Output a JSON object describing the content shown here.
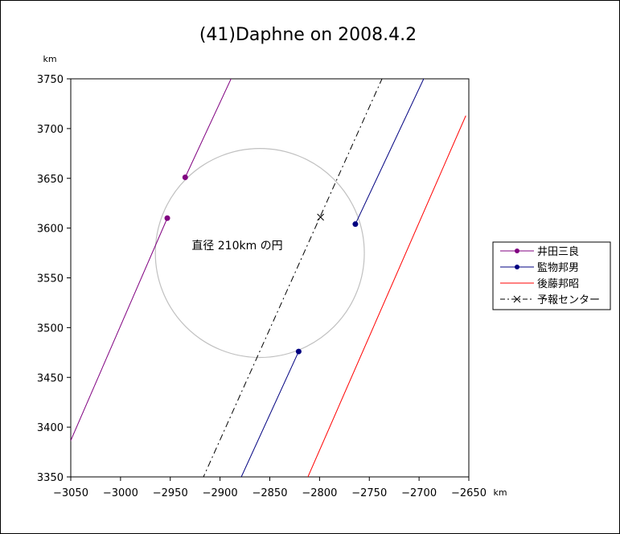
{
  "chart_data": {
    "type": "line",
    "title": "(41)Daphne on 2008.4.2",
    "xunit": "km",
    "yunit": "km",
    "xlim": [
      -3050,
      -2650
    ],
    "ylim": [
      3350,
      3750
    ],
    "xticks": [
      -3050,
      -3000,
      -2950,
      -2900,
      -2850,
      -2800,
      -2750,
      -2700,
      -2650
    ],
    "yticks": [
      3350,
      3400,
      3450,
      3500,
      3550,
      3600,
      3650,
      3700,
      3750
    ],
    "xtick_labels": [
      "−3050",
      "−3000",
      "−2950",
      "−2900",
      "−2850",
      "−2800",
      "−2750",
      "−2700",
      "−2650"
    ],
    "ytick_labels": [
      "3350",
      "3400",
      "3450",
      "3500",
      "3550",
      "3600",
      "3650",
      "3700",
      "3750"
    ],
    "grid": false,
    "legend_position": "right",
    "series": [
      {
        "name": "井田三良",
        "color": "#800080",
        "style": "solid",
        "marker": "dot",
        "segments": [
          {
            "x": [
              -2935,
              -2888
            ],
            "y": [
              3651,
              3752
            ]
          },
          {
            "x": [
              -2953,
              -3052
            ],
            "y": [
              3610,
              3382
            ]
          }
        ],
        "points": [
          {
            "x": -2935,
            "y": 3651
          },
          {
            "x": -2953,
            "y": 3610
          }
        ]
      },
      {
        "name": "監物邦男",
        "color": "#000080",
        "style": "solid",
        "marker": "dot",
        "segments": [
          {
            "x": [
              -2764,
              -2693
            ],
            "y": [
              3604,
              3755
            ]
          },
          {
            "x": [
              -2821,
              -2880
            ],
            "y": [
              3476,
              3347
            ]
          }
        ],
        "points": [
          {
            "x": -2764,
            "y": 3604
          },
          {
            "x": -2821,
            "y": 3476
          }
        ]
      },
      {
        "name": "後藤邦昭",
        "color": "#ff0000",
        "style": "solid",
        "marker": "none",
        "segments": [
          {
            "x": [
              -2813,
              -2653
            ],
            "y": [
              3347,
              3713
            ]
          }
        ],
        "points": []
      },
      {
        "name": "予報センター",
        "color": "#000000",
        "style": "dashdot",
        "marker": "x",
        "segments": [
          {
            "x": [
              -2918,
              -2735
            ],
            "y": [
              3347,
              3755
            ]
          }
        ],
        "points": [
          {
            "x": -2799,
            "y": 3611
          }
        ]
      }
    ],
    "circle": {
      "label": "直径 210km の円",
      "cx": -2860,
      "cy": 3575,
      "r": 105,
      "color": "#c0c0c0"
    }
  }
}
